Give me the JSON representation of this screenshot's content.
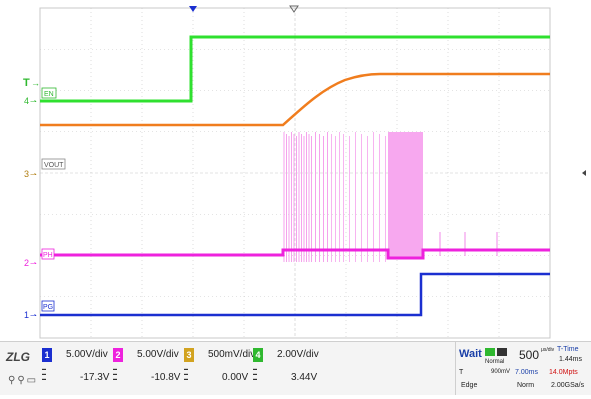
{
  "markers": {
    "trigger_label": "T",
    "channel4_marker": "4",
    "channel3_marker": "3",
    "channel2_marker": "2",
    "channel1_marker": "1"
  },
  "trace_labels": {
    "en": "EN",
    "vout": "VOUT",
    "ph": "PH",
    "pg": "PG"
  },
  "colors": {
    "ch1": "#1b2fd0",
    "ch2": "#ee22dd",
    "ch3": "#f07d1e",
    "ch4": "#2fe02f",
    "grid": "#c8c8c8"
  },
  "channels": [
    {
      "num": "1",
      "scale": "5.00V/div",
      "offset": "-17.3V",
      "color": "#1b2fd0"
    },
    {
      "num": "2",
      "scale": "5.00V/div",
      "offset": "-10.8V",
      "color": "#ee22dd"
    },
    {
      "num": "3",
      "scale": "500mV/div",
      "offset": "0.00V",
      "color": "#d2a320"
    },
    {
      "num": "4",
      "scale": "2.00V/div",
      "offset": "3.44V",
      "color": "#2fb82f"
    }
  ],
  "status": {
    "run_state": "Wait",
    "trigger_mode": "Normal",
    "trigger_level": "900mV",
    "trigger_source_label": "T",
    "edge_label": "Edge",
    "timebase_value": "500",
    "timebase_unit": "μs/div",
    "t_time_label": "T-Time",
    "t_time_value": "1.44ms",
    "delay": "7.00ms",
    "memory_depth": "14.0Mpts",
    "acq_mode": "Norm",
    "sample_rate": "2.00GSa/s"
  },
  "logo": "ZLG"
}
